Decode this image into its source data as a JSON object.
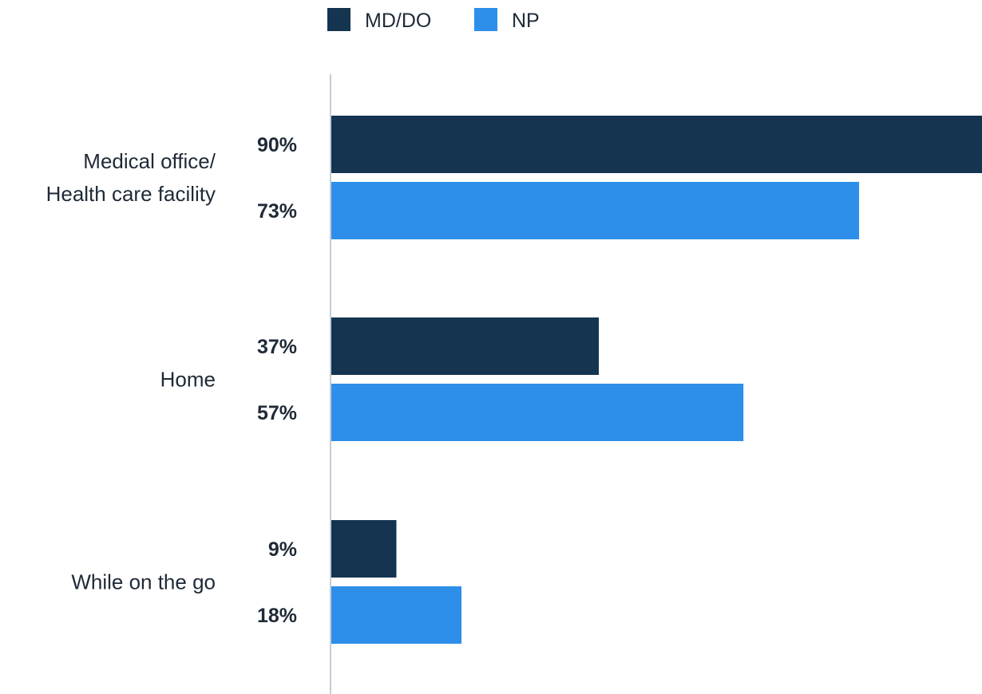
{
  "chart_data": {
    "type": "bar",
    "orientation": "horizontal",
    "categories": [
      [
        "Medical office/",
        "Health care facility"
      ],
      [
        "Home"
      ],
      [
        "While on the go"
      ]
    ],
    "series": [
      {
        "name": "MD/DO",
        "color": "#14344f",
        "values": [
          90,
          37,
          9
        ],
        "labels": [
          "90%",
          "37%",
          "9%"
        ]
      },
      {
        "name": "NP",
        "color": "#2d8fea",
        "values": [
          73,
          57,
          18
        ],
        "labels": [
          "73%",
          "57%",
          "18%"
        ]
      }
    ],
    "xlim": [
      0,
      90
    ],
    "legend": "top-center",
    "grid": false
  }
}
